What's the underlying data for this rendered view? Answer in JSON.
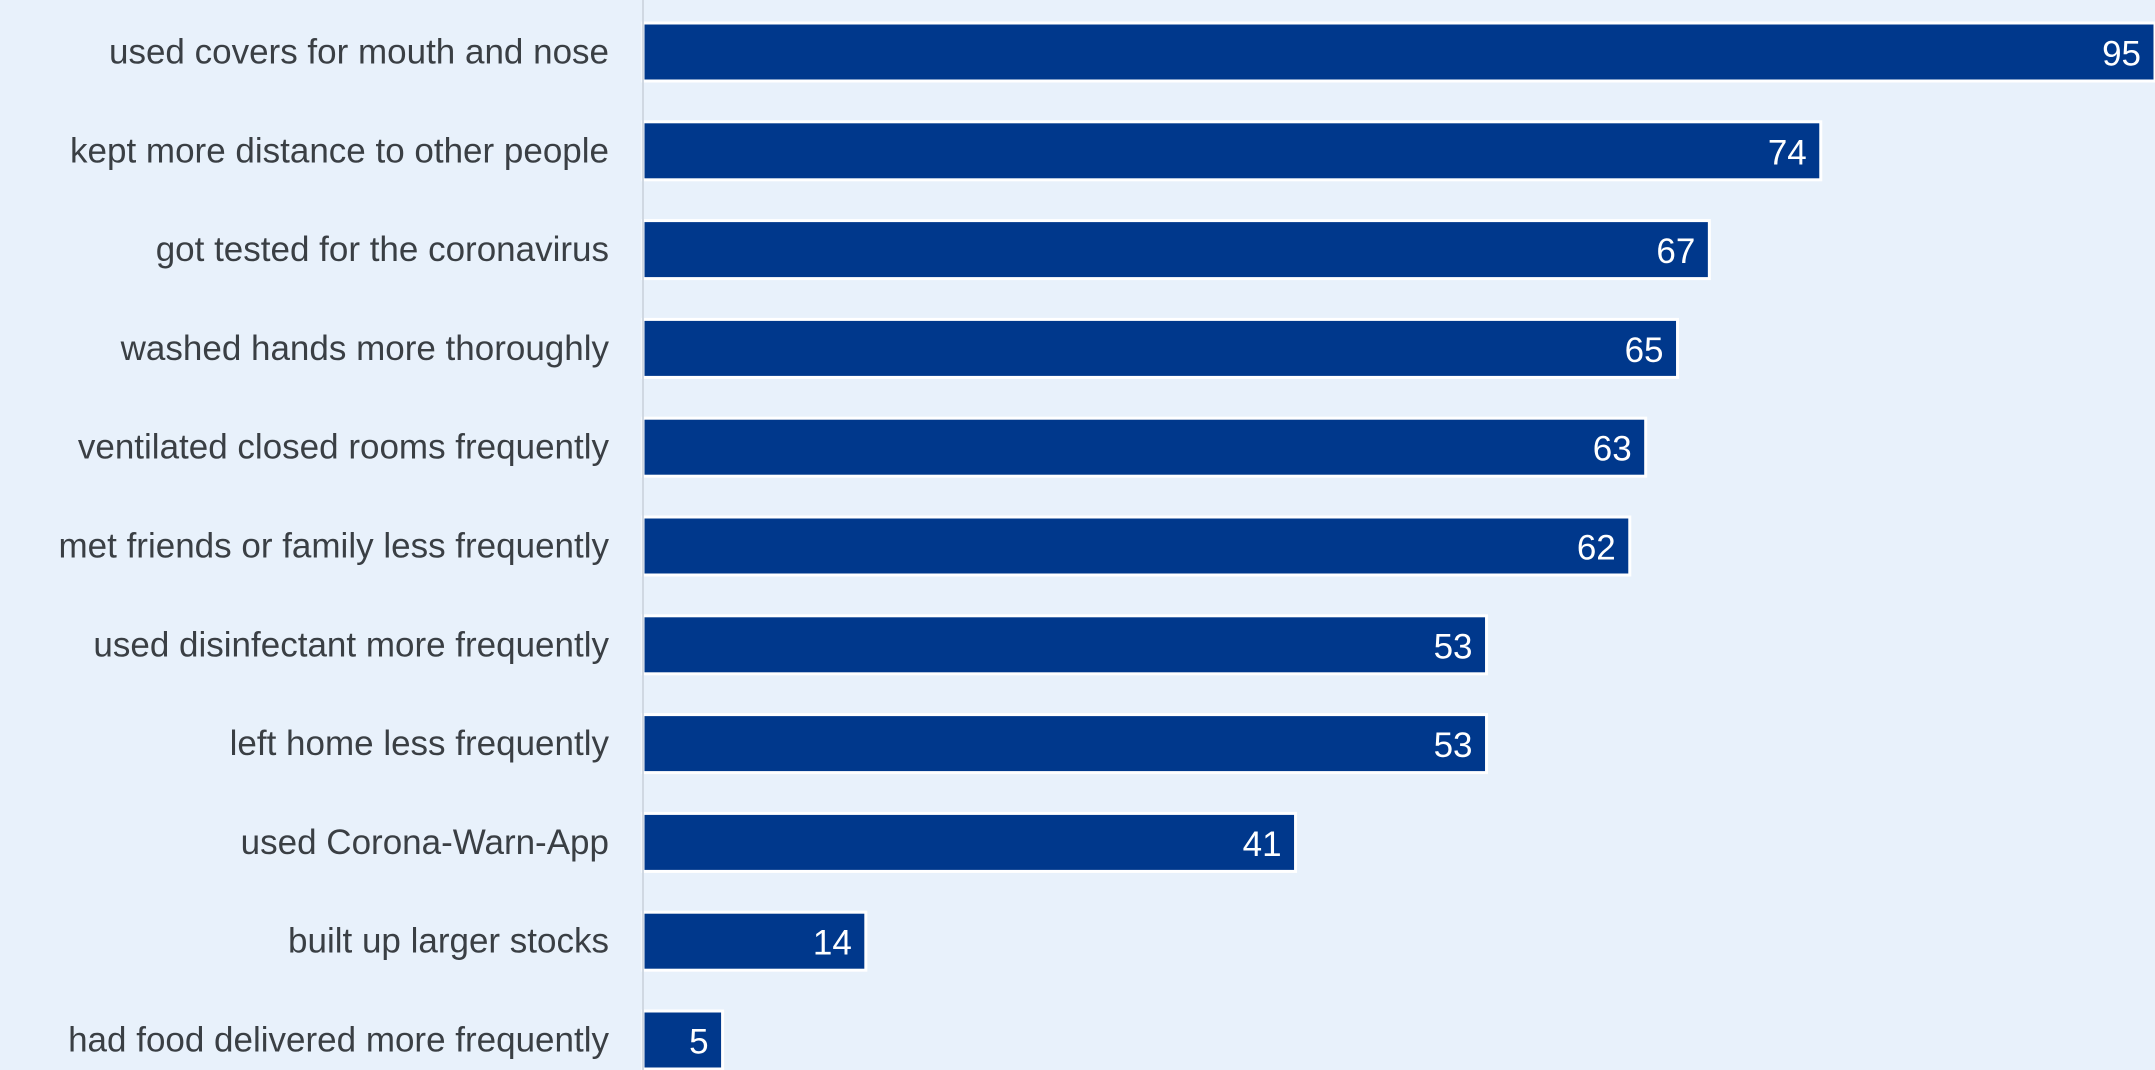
{
  "chart_data": {
    "type": "bar",
    "orientation": "horizontal",
    "categories": [
      "used covers for mouth and nose",
      "kept more distance to other people",
      "got tested for the coronavirus",
      "washed hands more thoroughly",
      "ventilated closed rooms frequently",
      "met friends or family less frequently",
      "used disinfectant more frequently",
      "left home less frequently",
      "used Corona-Warn-App",
      "built up larger stocks",
      "had food delivered more frequently"
    ],
    "values": [
      95,
      74,
      67,
      65,
      63,
      62,
      53,
      53,
      41,
      14,
      5
    ],
    "value_labels": [
      "95",
      "74",
      "67",
      "65",
      "63",
      "62",
      "53",
      "53",
      "41",
      "14",
      "5"
    ],
    "xlim": [
      0,
      95
    ],
    "grid": false,
    "legend": "none",
    "colors": {
      "bar": "#00388c",
      "bar_outline": "#ffffff",
      "background": "#e8f1fb",
      "axis_line": "#d0d8e2",
      "category_text": "#3a3f44",
      "value_text": "#ffffff"
    }
  }
}
